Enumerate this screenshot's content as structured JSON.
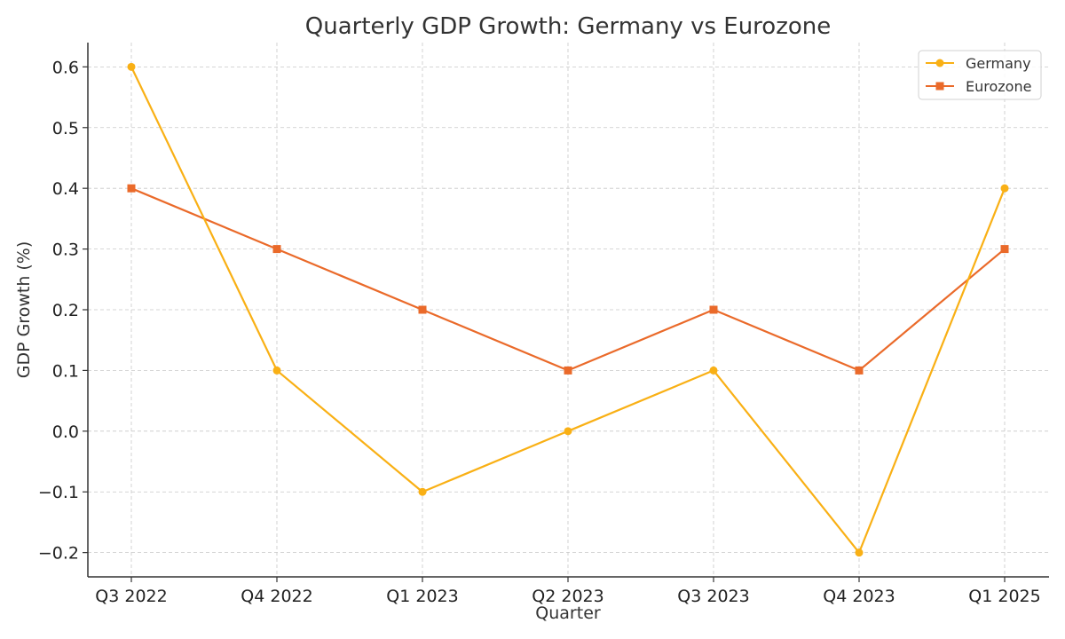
{
  "chart_data": {
    "type": "line",
    "title": "Quarterly GDP Growth: Germany vs Eurozone",
    "xlabel": "Quarter",
    "ylabel": "GDP Growth (%)",
    "categories": [
      "Q3 2022",
      "Q4 2022",
      "Q1 2023",
      "Q2 2023",
      "Q3 2023",
      "Q4 2023",
      "Q1 2025"
    ],
    "ylim": [
      -0.24,
      0.64
    ],
    "yticks": [
      -0.2,
      -0.1,
      0.0,
      0.1,
      0.2,
      0.3,
      0.4,
      0.5,
      0.6
    ],
    "ytick_labels": [
      "−0.2",
      "−0.1",
      "0.0",
      "0.1",
      "0.2",
      "0.3",
      "0.4",
      "0.5",
      "0.6"
    ],
    "grid": true,
    "legend_position": "top-right",
    "series": [
      {
        "name": "Germany",
        "values": [
          0.6,
          0.1,
          -0.1,
          0.0,
          0.1,
          -0.2,
          0.4
        ],
        "color": "#F9B015",
        "marker": "circle"
      },
      {
        "name": "Eurozone",
        "values": [
          0.4,
          0.3,
          0.2,
          0.1,
          0.2,
          0.1,
          0.3
        ],
        "color": "#EA6A2A",
        "marker": "square"
      }
    ]
  }
}
